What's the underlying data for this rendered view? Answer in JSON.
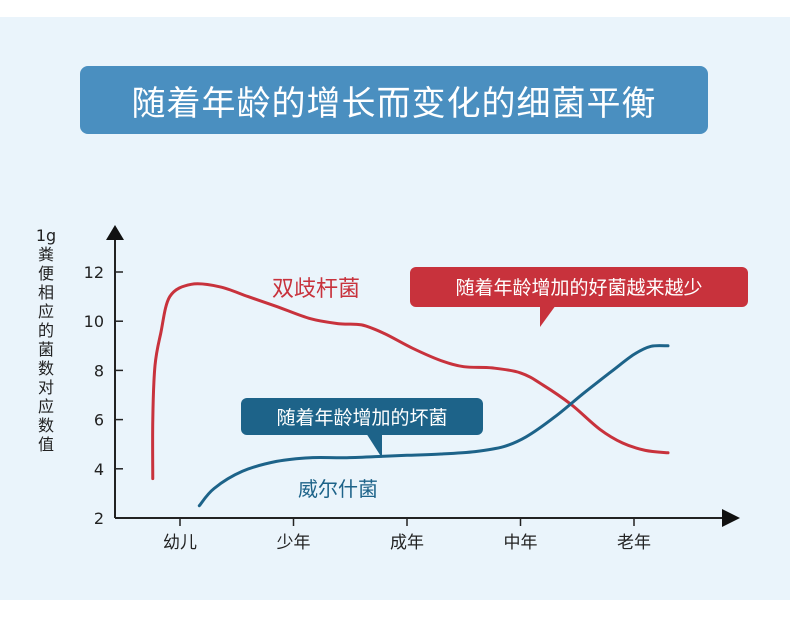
{
  "title": "随着年龄的增长而变化的细菌平衡",
  "colors": {
    "title_bg": "#4a8fc0",
    "good_bacteria": "#c8323c",
    "bad_bacteria": "#1d6389",
    "axis": "#222222",
    "panel_bg": "#eaf4fb"
  },
  "chart_data": {
    "type": "line",
    "title": "",
    "ylabel": "1g粪便相应的菌数对应数值",
    "ylabel_top": "1g",
    "ylabel_chars": "粪便相应的菌数对应数值",
    "xlabel": "",
    "categories": [
      "幼儿",
      "少年",
      "成年",
      "中年",
      "老年"
    ],
    "yticks": [
      2,
      4,
      6,
      8,
      10,
      12
    ],
    "ylim": [
      2,
      13.5
    ],
    "xlim": [
      -0.15,
      4.65
    ],
    "series": [
      {
        "name": "双歧杆菌",
        "color": "#c8323c",
        "x": [
          -0.24,
          -0.24,
          -0.22,
          -0.17,
          -0.09,
          0.1,
          0.35,
          0.6,
          0.85,
          1.15,
          1.4,
          1.6,
          1.8,
          2.05,
          2.3,
          2.5,
          2.75,
          3.0,
          3.2,
          3.45,
          3.7,
          3.9,
          4.1,
          4.3
        ],
        "y": [
          3.6,
          6.0,
          8.2,
          9.5,
          11.0,
          11.5,
          11.4,
          11.0,
          10.6,
          10.1,
          9.9,
          9.85,
          9.5,
          8.9,
          8.4,
          8.15,
          8.1,
          7.9,
          7.4,
          6.6,
          5.6,
          5.05,
          4.75,
          4.65
        ]
      },
      {
        "name": "威尔什菌",
        "color": "#1d6389",
        "x": [
          0.17,
          0.3,
          0.55,
          0.85,
          1.15,
          1.45,
          1.75,
          2.0,
          2.3,
          2.6,
          2.85,
          3.05,
          3.3,
          3.55,
          3.8,
          4.0,
          4.15,
          4.3
        ],
        "y": [
          2.5,
          3.2,
          3.9,
          4.3,
          4.45,
          4.45,
          4.5,
          4.55,
          4.6,
          4.7,
          4.9,
          5.3,
          6.1,
          7.05,
          7.95,
          8.65,
          8.98,
          9.0
        ]
      }
    ],
    "annotations": {
      "good_label": "双歧杆菌",
      "bad_label": "威尔什菌",
      "good_callout": "随着年龄增加的好菌越来越少",
      "bad_callout": "随着年龄增加的坏菌"
    },
    "grid": false,
    "legend": "none"
  }
}
